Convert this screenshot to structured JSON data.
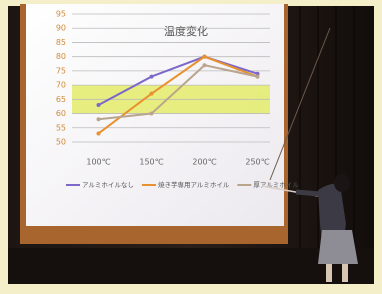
{
  "chart_data": {
    "type": "line",
    "title": "温度変化",
    "categories": [
      "100℃",
      "150℃",
      "200℃",
      "250℃"
    ],
    "series": [
      {
        "name": "アルミホイルなし",
        "color": "#7b68c8",
        "values": [
          63,
          73,
          80,
          74
        ]
      },
      {
        "name": "焼き芋専用アルミホイル",
        "color": "#e8912e",
        "values": [
          53,
          67,
          80,
          73
        ]
      },
      {
        "name": "厚アルミホイル",
        "color": "#b9a58c",
        "values": [
          58,
          60,
          77,
          73
        ]
      }
    ],
    "band": [
      60,
      70
    ],
    "band_color": "#e4ec6a",
    "ylim": [
      50,
      95
    ],
    "yticks": [
      50,
      55,
      60,
      65,
      70,
      75,
      80,
      85,
      90,
      95
    ],
    "grid": true
  }
}
